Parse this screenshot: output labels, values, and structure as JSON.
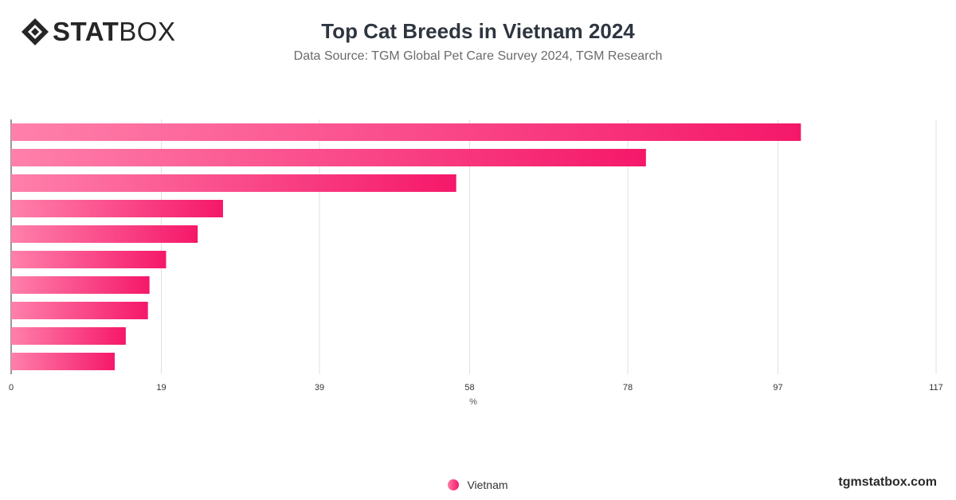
{
  "brand": {
    "logo_bold": "STAT",
    "logo_light": "BOX",
    "website": "tgmstatbox.com"
  },
  "header": {
    "title": "Top Cat Breeds in Vietnam 2024",
    "subtitle": "Data Source: TGM Global Pet Care Survey 2024, TGM Research"
  },
  "colors": {
    "bar_start": "#ff80ab",
    "bar_end": "#f5186a",
    "grid": "#e0e0e0",
    "axis_text": "#333333"
  },
  "chart_data": {
    "type": "bar",
    "orientation": "horizontal",
    "categories": [
      "",
      "",
      "",
      "",
      "",
      "",
      "",
      "",
      "",
      ""
    ],
    "series": [
      {
        "name": "Vietnam",
        "values": [
          99.9,
          80.3,
          56.3,
          26.8,
          23.6,
          19.6,
          17.5,
          17.3,
          14.5,
          13.1
        ]
      }
    ],
    "xlabel": "%",
    "ylabel": "",
    "xlim": [
      0,
      117
    ],
    "ticks": [
      0,
      19,
      39,
      58,
      78,
      97,
      117
    ],
    "grid": true,
    "legend_position": "bottom-center"
  }
}
